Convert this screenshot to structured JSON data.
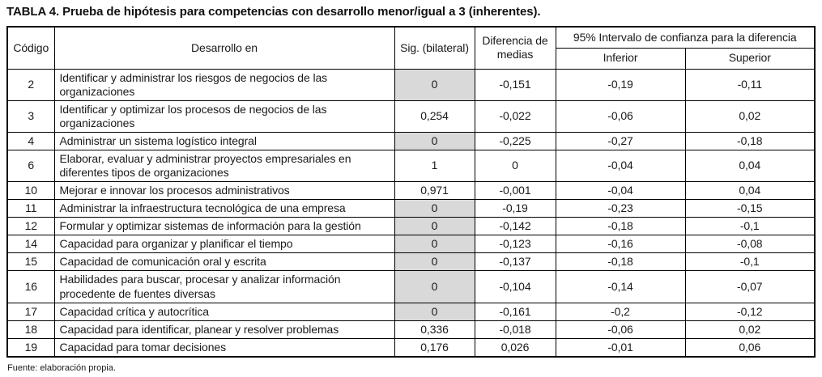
{
  "title": "TABLA 4. Prueba de hipótesis para competencias con desarrollo menor/igual a 3 (inherentes).",
  "source_note": "Fuente: elaboración propia.",
  "colors": {
    "shaded_cell": "#d9d9d9",
    "border": "#000000",
    "text": "#1a1a1a"
  },
  "table": {
    "headers": {
      "codigo": "Código",
      "desarrollo": "Desarrollo en",
      "sig": "Sig. (bilateral)",
      "diferencia": "Diferencia de medias",
      "intervalo": "95% Intervalo de confianza para la diferencia",
      "inferior": "Inferior",
      "superior": "Superior"
    },
    "rows": [
      {
        "codigo": "2",
        "desarrollo": "Identificar y administrar los riesgos de negocios de las organizaciones",
        "sig": "0",
        "sig_shaded": true,
        "diferencia": "-0,151",
        "inferior": "-0,19",
        "superior": "-0,11"
      },
      {
        "codigo": "3",
        "desarrollo": "Identificar y optimizar los procesos de negocios de las organizaciones",
        "sig": "0,254",
        "sig_shaded": false,
        "diferencia": "-0,022",
        "inferior": "-0,06",
        "superior": "0,02"
      },
      {
        "codigo": "4",
        "desarrollo": "Administrar un sistema logístico integral",
        "sig": "0",
        "sig_shaded": true,
        "diferencia": "-0,225",
        "inferior": "-0,27",
        "superior": "-0,18"
      },
      {
        "codigo": "6",
        "desarrollo": "Elaborar, evaluar y administrar proyectos empresariales en diferentes tipos de organizaciones",
        "sig": "1",
        "sig_shaded": false,
        "diferencia": "0",
        "inferior": "-0,04",
        "superior": "0,04"
      },
      {
        "codigo": "10",
        "desarrollo": "Mejorar e innovar los procesos administrativos",
        "sig": "0,971",
        "sig_shaded": false,
        "diferencia": "-0,001",
        "inferior": "-0,04",
        "superior": "0,04"
      },
      {
        "codigo": "11",
        "desarrollo": "Administrar la infraestructura tecnológica de una empresa",
        "sig": "0",
        "sig_shaded": true,
        "diferencia": "-0,19",
        "inferior": "-0,23",
        "superior": "-0,15"
      },
      {
        "codigo": "12",
        "desarrollo": "Formular y optimizar sistemas de información para la gestión",
        "sig": "0",
        "sig_shaded": true,
        "diferencia": "-0,142",
        "inferior": "-0,18",
        "superior": "-0,1"
      },
      {
        "codigo": "14",
        "desarrollo": "Capacidad para organizar y planificar el tiempo",
        "sig": "0",
        "sig_shaded": true,
        "diferencia": "-0,123",
        "inferior": "-0,16",
        "superior": "-0,08"
      },
      {
        "codigo": "15",
        "desarrollo": "Capacidad de comunicación oral y escrita",
        "sig": "0",
        "sig_shaded": true,
        "diferencia": "-0,137",
        "inferior": "-0,18",
        "superior": "-0,1"
      },
      {
        "codigo": "16",
        "desarrollo": "Habilidades para buscar, procesar y analizar información procedente de fuentes diversas",
        "sig": "0",
        "sig_shaded": true,
        "diferencia": "-0,104",
        "inferior": "-0,14",
        "superior": "-0,07"
      },
      {
        "codigo": "17",
        "desarrollo": "Capacidad crítica y autocrítica",
        "sig": "0",
        "sig_shaded": true,
        "diferencia": "-0,161",
        "inferior": "-0,2",
        "superior": "-0,12"
      },
      {
        "codigo": "18",
        "desarrollo": "Capacidad para identificar, planear y resolver problemas",
        "sig": "0,336",
        "sig_shaded": false,
        "diferencia": "-0,018",
        "inferior": "-0,06",
        "superior": "0,02"
      },
      {
        "codigo": "19",
        "desarrollo": "Capacidad para tomar decisiones",
        "sig": "0,176",
        "sig_shaded": false,
        "diferencia": "0,026",
        "inferior": "-0,01",
        "superior": "0,06"
      }
    ]
  }
}
